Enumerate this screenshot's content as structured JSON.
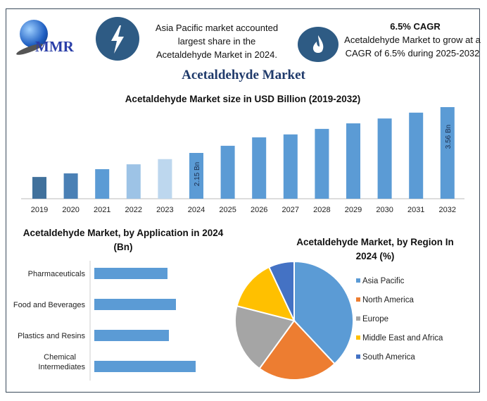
{
  "logo": {
    "text": "MMR"
  },
  "header": {
    "info1": "Asia Pacific market accounted largest share in the Acetaldehyde Market in 2024.",
    "cagr_title": "6.5% CAGR",
    "info2": "Acetaldehyde Market to grow at a CAGR of 6.5% during 2025-2032",
    "main_title": "Acetaldehyde Market",
    "icons": [
      "lightning-icon",
      "flame-icon"
    ]
  },
  "chart_data": [
    {
      "type": "bar",
      "title": "Acetaldehyde Market size in USD Billion (2019-2032)",
      "categories": [
        "2019",
        "2020",
        "2021",
        "2022",
        "2023",
        "2024",
        "2025",
        "2026",
        "2027",
        "2028",
        "2029",
        "2030",
        "2031",
        "2032"
      ],
      "values": [
        1.41,
        1.52,
        1.65,
        1.8,
        1.96,
        2.15,
        2.37,
        2.63,
        2.72,
        2.89,
        3.06,
        3.21,
        3.39,
        3.56
      ],
      "data_labels": {
        "5": "2.15 Bn",
        "13": "3.56 Bn"
      },
      "colors": [
        "#41719c",
        "#4a80b5",
        "#5b9bd5",
        "#9dc3e6",
        "#bdd7ee",
        "#5b9bd5",
        "#5b9bd5",
        "#5b9bd5",
        "#5b9bd5",
        "#5b9bd5",
        "#5b9bd5",
        "#5b9bd5",
        "#5b9bd5",
        "#5b9bd5"
      ],
      "ylim": [
        0.74,
        3.6
      ],
      "grid": false
    },
    {
      "type": "bar",
      "orientation": "horizontal",
      "title": "Acetaldehyde Market, by Application in 2024 (Bn)",
      "categories": [
        "Pharmaceuticals",
        "Food and Beverages",
        "Plastics and Resins",
        "Chemical Intermediates"
      ],
      "values": [
        0.52,
        0.58,
        0.53,
        0.72
      ],
      "color": "#5b9bd5",
      "grid": false
    },
    {
      "type": "pie",
      "title": "Acetaldehyde Market, by Region In 2024 (%)",
      "labels": [
        "Asia Pacific",
        "North America",
        "Europe",
        "Middle East and Africa",
        "South America"
      ],
      "values": [
        38,
        22,
        19,
        14,
        7
      ],
      "colors": [
        "#5b9bd5",
        "#ed7d31",
        "#a5a5a5",
        "#ffc000",
        "#4472c4"
      ],
      "legend": "right"
    }
  ]
}
